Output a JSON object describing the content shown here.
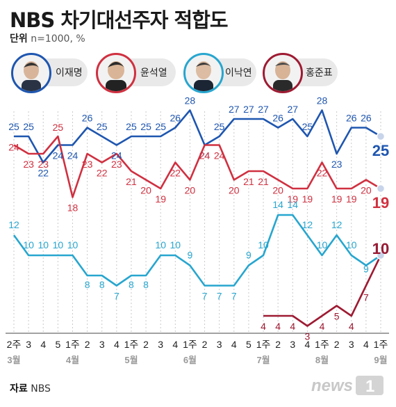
{
  "header": {
    "title": "NBS 차기대선주자 적합도",
    "unit_label": "단위",
    "unit_value": "n=1000, %"
  },
  "candidates": [
    {
      "name": "이재명",
      "color": "#1e56b0"
    },
    {
      "name": "윤석열",
      "color": "#d03040"
    },
    {
      "name": "이낙연",
      "color": "#27a6cf"
    },
    {
      "name": "홍준표",
      "color": "#9e1a32"
    }
  ],
  "footer": {
    "source_label": "자료",
    "source_value": "NBS",
    "logo_text": "news1"
  },
  "chart_data": {
    "type": "line",
    "x": [
      "2주",
      "3",
      "4",
      "5",
      "1주",
      "2",
      "3",
      "4",
      "1주",
      "2",
      "3",
      "4",
      "1주",
      "2",
      "3",
      "4",
      "5",
      "1주",
      "2",
      "3",
      "4",
      "1주",
      "2",
      "3",
      "4",
      "1주"
    ],
    "months": [
      {
        "label": "3월",
        "index": 0
      },
      {
        "label": "4월",
        "index": 4
      },
      {
        "label": "5월",
        "index": 8
      },
      {
        "label": "6월",
        "index": 12
      },
      {
        "label": "7월",
        "index": 17
      },
      {
        "label": "8월",
        "index": 21
      },
      {
        "label": "9월",
        "index": 25
      }
    ],
    "series": [
      {
        "name": "이재명",
        "color": "#1e56b0",
        "values": [
          25,
          25,
          22,
          24,
          24,
          26,
          25,
          24,
          25,
          25,
          25,
          26,
          28,
          24,
          25,
          27,
          27,
          27,
          26,
          27,
          25,
          28,
          23,
          26,
          26,
          25
        ]
      },
      {
        "name": "윤석열",
        "color": "#d03040",
        "values": [
          24,
          23,
          23,
          25,
          18,
          23,
          22,
          23,
          21,
          20,
          19,
          22,
          20,
          24,
          24,
          20,
          21,
          21,
          20,
          19,
          19,
          22,
          19,
          19,
          20,
          19
        ]
      },
      {
        "name": "이낙연",
        "color": "#27a6cf",
        "values": [
          12,
          10,
          10,
          10,
          10,
          8,
          8,
          7,
          8,
          8,
          10,
          10,
          9,
          7,
          7,
          7,
          9,
          10,
          14,
          14,
          12,
          10,
          12,
          10,
          9,
          10
        ]
      },
      {
        "name": "홍준표",
        "color": "#9e1a32",
        "values": [
          null,
          null,
          null,
          null,
          null,
          null,
          null,
          null,
          null,
          null,
          null,
          null,
          null,
          null,
          null,
          null,
          null,
          4,
          4,
          4,
          3,
          4,
          5,
          4,
          7,
          10
        ]
      }
    ],
    "grid": true
  }
}
